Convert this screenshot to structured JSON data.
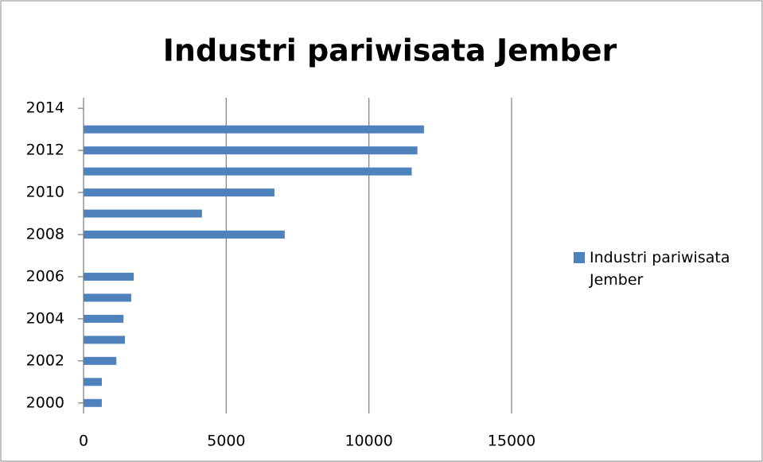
{
  "chart_data": {
    "type": "hbar",
    "title": "Industri pariwisata Jember",
    "x": [
      2000,
      2001,
      2002,
      2003,
      2004,
      2005,
      2006,
      2008,
      2009,
      2010,
      2011,
      2012,
      2013
    ],
    "series": [
      {
        "name": "Industri pariwisata Jember",
        "color": "#4f81bd",
        "values": [
          640,
          640,
          1150,
          1450,
          1400,
          1670,
          1760,
          7050,
          4150,
          6690,
          11500,
          11700,
          11930
        ]
      }
    ],
    "xlim": [
      0,
      15000
    ],
    "xticks": [
      0,
      5000,
      10000,
      15000
    ],
    "ylim": [
      1999.5,
      2014.5
    ],
    "yticks": [
      2000,
      2002,
      2004,
      2006,
      2008,
      2010,
      2012,
      2014
    ],
    "grid": true,
    "legend": "right"
  }
}
